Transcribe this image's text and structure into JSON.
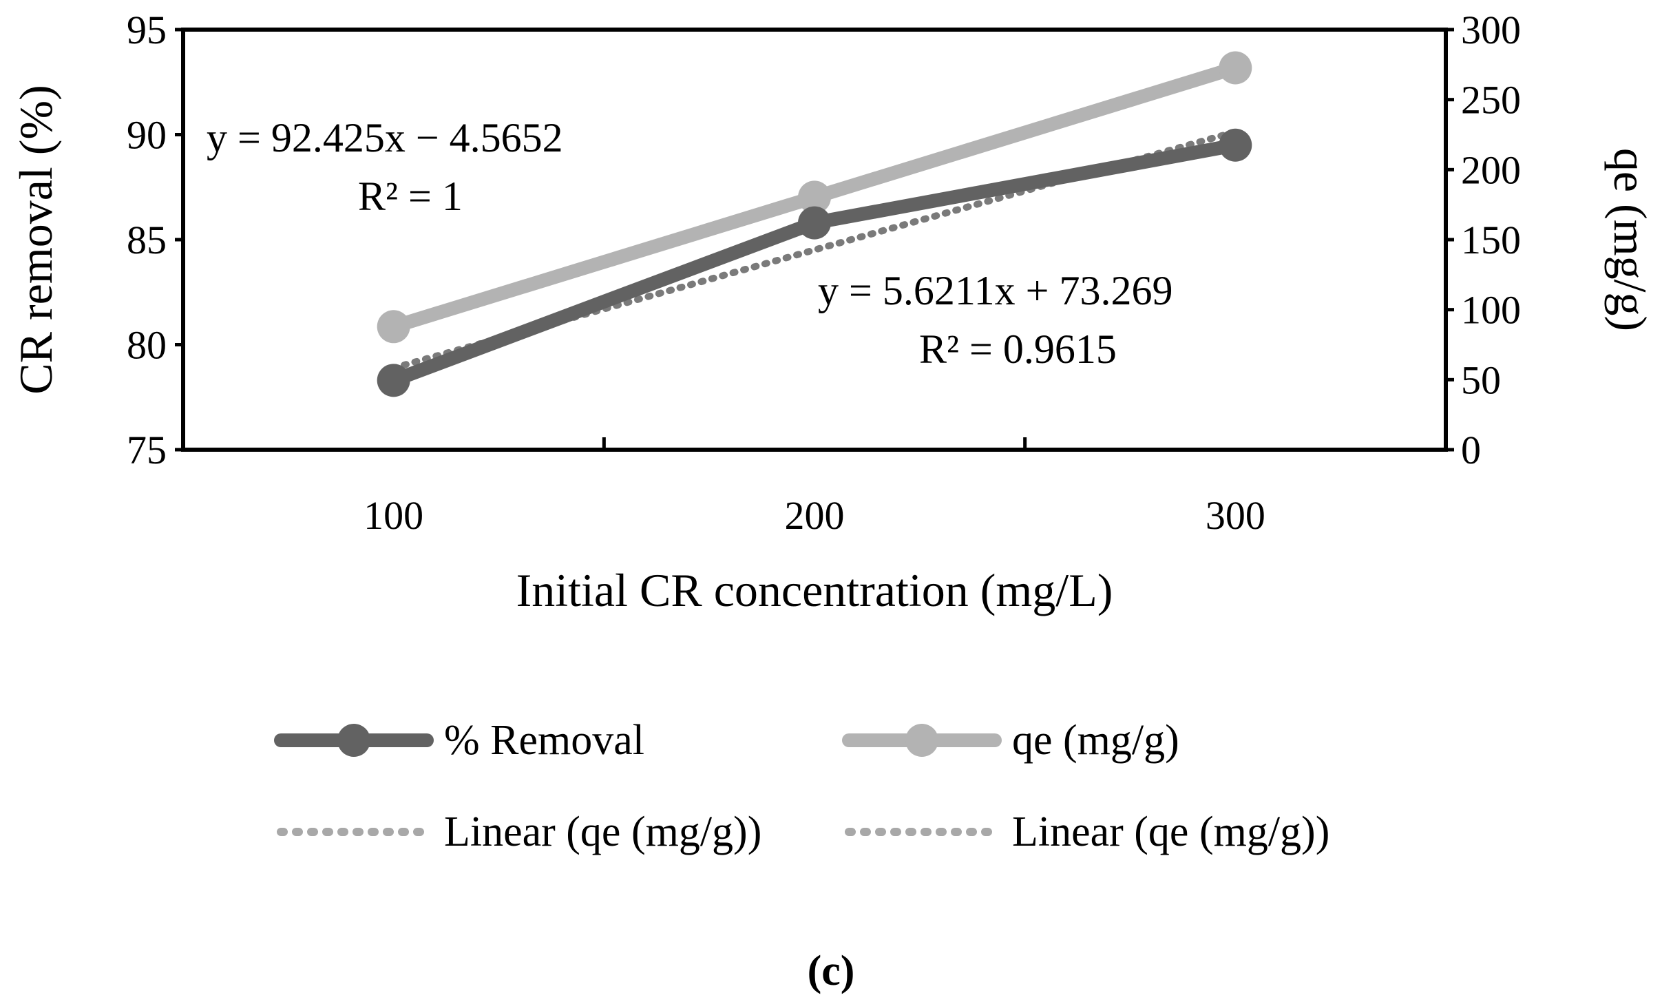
{
  "chart_data": {
    "type": "line",
    "categories": [
      "100",
      "200",
      "300"
    ],
    "xlabel": "Initial CR concentration (mg/L)",
    "ylabel": "CR removal (%)",
    "y2label": "qe (mg/g)",
    "ylim": [
      75,
      95
    ],
    "y2lim": [
      0,
      300
    ],
    "yticks": [
      "75",
      "80",
      "85",
      "90",
      "95"
    ],
    "y2ticks": [
      "0",
      "50",
      "100",
      "150",
      "200",
      "250",
      "300"
    ],
    "grid": false,
    "series": [
      {
        "name": "% Removal",
        "axis": "left",
        "values": [
          78.3,
          85.8,
          89.5
        ],
        "color": "#626262",
        "style": "solid-marker"
      },
      {
        "name": "qe (mg/g)",
        "axis": "right",
        "values": [
          87.9,
          180.3,
          272.7
        ],
        "color": "#b3b3b3",
        "style": "solid-marker"
      }
    ],
    "trendlines": [
      {
        "legend": "Linear (qe (mg/g))",
        "axis": "left",
        "slope": 5.6211,
        "intercept": 73.269,
        "equation": "y = 5.6211x + 73.269",
        "r2": "R² = 0.9615",
        "color": "#7a7a7a"
      },
      {
        "legend": "Linear (qe (mg/g))",
        "axis": "right",
        "slope": 92.425,
        "intercept": -4.5652,
        "equation": "y = 92.425x − 4.5652",
        "r2": "R² = 1",
        "color": "#a8a8a8"
      }
    ],
    "legend_position": "bottom",
    "caption": "(c)"
  }
}
